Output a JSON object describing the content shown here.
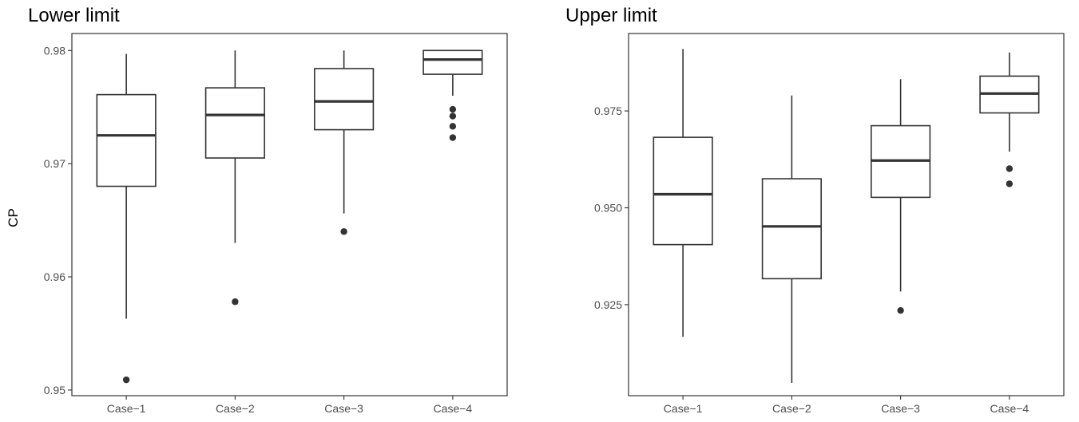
{
  "chart_data": [
    {
      "type": "box",
      "title": "Lower limit",
      "xlabel": "",
      "ylabel": "CP",
      "ylim": [
        0.9495,
        0.9815
      ],
      "yticks": [
        0.95,
        0.96,
        0.97,
        0.98
      ],
      "ytick_labels": [
        "0.95",
        "0.96",
        "0.97",
        "0.98"
      ],
      "categories": [
        "Case−1",
        "Case−2",
        "Case−3",
        "Case−4"
      ],
      "boxes": [
        {
          "min": 0.9563,
          "q1": 0.968,
          "median": 0.9725,
          "q3": 0.9761,
          "max": 0.9797,
          "outliers": [
            0.9509
          ]
        },
        {
          "min": 0.963,
          "q1": 0.9705,
          "median": 0.9743,
          "q3": 0.9767,
          "max": 0.98,
          "outliers": [
            0.9578
          ]
        },
        {
          "min": 0.9656,
          "q1": 0.973,
          "median": 0.9755,
          "q3": 0.9784,
          "max": 0.98,
          "outliers": [
            0.964
          ]
        },
        {
          "min": 0.976,
          "q1": 0.9779,
          "median": 0.9792,
          "q3": 0.98,
          "max": 0.98,
          "outliers": [
            0.9748,
            0.9742,
            0.9733,
            0.9723
          ]
        }
      ],
      "grid": false,
      "legend": "none"
    },
    {
      "type": "box",
      "title": "Upper limit",
      "xlabel": "",
      "ylabel": "",
      "ylim": [
        0.9015,
        0.995
      ],
      "yticks": [
        0.925,
        0.95,
        0.975
      ],
      "ytick_labels": [
        "0.925",
        "0.950",
        "0.975"
      ],
      "categories": [
        "Case−1",
        "Case−2",
        "Case−3",
        "Case−4"
      ],
      "boxes": [
        {
          "min": 0.9167,
          "q1": 0.9405,
          "median": 0.9535,
          "q3": 0.9682,
          "max": 0.991,
          "outliers": []
        },
        {
          "min": 0.9048,
          "q1": 0.9317,
          "median": 0.9452,
          "q3": 0.9575,
          "max": 0.979,
          "outliers": []
        },
        {
          "min": 0.9284,
          "q1": 0.9527,
          "median": 0.9622,
          "q3": 0.9712,
          "max": 0.9832,
          "outliers": [
            0.9235
          ]
        },
        {
          "min": 0.9645,
          "q1": 0.9745,
          "median": 0.9795,
          "q3": 0.984,
          "max": 0.9901,
          "outliers": [
            0.9601,
            0.9562
          ]
        }
      ],
      "grid": false,
      "legend": "none"
    }
  ]
}
